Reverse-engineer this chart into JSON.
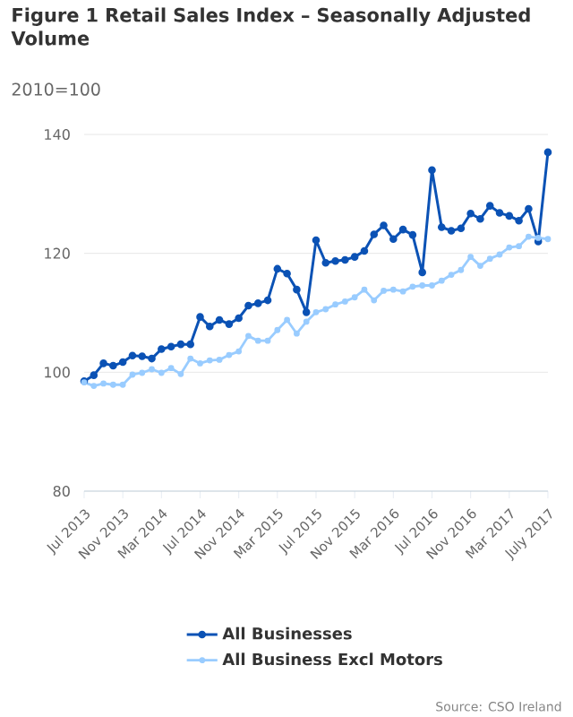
{
  "chart_data": {
    "type": "line",
    "title": "Figure 1 Retail Sales Index – Seasonally Adjusted Volume",
    "subtitle": "2010=100",
    "categories": [
      "Jul 2013",
      null,
      null,
      null,
      "Nov 2013",
      null,
      null,
      null,
      "Mar 2014",
      null,
      null,
      null,
      "Jul 2014",
      null,
      null,
      null,
      "Nov 2014",
      null,
      null,
      null,
      "Mar 2015",
      null,
      null,
      null,
      "Jul 2015",
      null,
      null,
      null,
      "Nov 2015",
      null,
      null,
      null,
      "Mar 2016",
      null,
      null,
      null,
      "Jul 2016",
      null,
      null,
      null,
      "Nov 2016",
      null,
      null,
      null,
      "Mar 2017",
      null,
      null,
      null,
      "July 2017"
    ],
    "series": [
      {
        "name": "All Businesses",
        "color": "#0b52b5",
        "values": [
          98.5,
          99.5,
          101.5,
          101.1,
          101.7,
          102.8,
          102.7,
          102.3,
          103.9,
          104.3,
          104.7,
          104.7,
          109.3,
          107.7,
          108.8,
          108.1,
          109.1,
          111.2,
          111.6,
          112.1,
          117.4,
          116.6,
          113.9,
          110.1,
          122.2,
          118.4,
          118.7,
          118.9,
          119.4,
          120.4,
          123.2,
          124.7,
          122.4,
          124,
          123.1,
          116.8,
          134,
          124.4,
          123.8,
          124.2,
          126.7,
          125.8,
          128,
          126.8,
          126.3,
          125.5,
          127.5,
          122,
          137
        ]
      },
      {
        "name": "All Business Excl Motors",
        "color": "#99ccff",
        "values": [
          98.3,
          97.7,
          98.1,
          97.9,
          97.9,
          99.6,
          99.9,
          100.5,
          99.9,
          100.7,
          99.7,
          102.3,
          101.5,
          102,
          102.1,
          102.9,
          103.5,
          106.1,
          105.3,
          105.3,
          107.1,
          108.8,
          106.5,
          108.5,
          110.1,
          110.6,
          111.4,
          111.9,
          112.6,
          113.9,
          112.1,
          113.7,
          113.9,
          113.6,
          114.4,
          114.6,
          114.6,
          115.4,
          116.4,
          117.2,
          119.4,
          117.9,
          119.1,
          119.8,
          121,
          121.2,
          122.8,
          122.6,
          122.4
        ]
      }
    ],
    "ylim": [
      80,
      140
    ],
    "yticks": [
      80,
      100,
      120,
      140
    ],
    "grid": "y",
    "legend": "bottom",
    "marker": "circle",
    "annotations": [
      "Source: CSO Ireland"
    ]
  }
}
